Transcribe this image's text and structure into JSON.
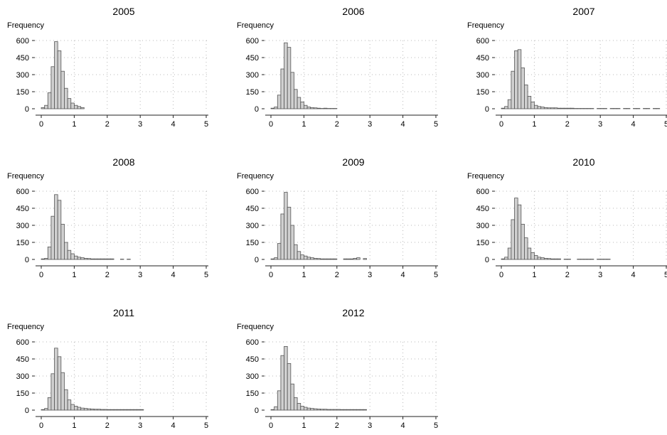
{
  "chart_data": [
    {
      "type": "bar",
      "title": "2005",
      "ylabel": "Frequency",
      "xlim": [
        0,
        5
      ],
      "ylim": [
        0,
        600
      ],
      "xticks": [
        "0",
        "1",
        "2",
        "3",
        "4",
        "5"
      ],
      "yticks": [
        "0",
        "150",
        "300",
        "450",
        "600"
      ],
      "grid": true,
      "bin_width": 0.1,
      "bin_starts": [
        0.0,
        0.1,
        0.2,
        0.3,
        0.4,
        0.5,
        0.6,
        0.7,
        0.8,
        0.9,
        1.0,
        1.1,
        1.2
      ],
      "values": [
        10,
        30,
        140,
        370,
        590,
        510,
        330,
        180,
        90,
        50,
        30,
        20,
        10
      ]
    },
    {
      "type": "bar",
      "title": "2006",
      "ylabel": "Frequency",
      "xlim": [
        0,
        5
      ],
      "ylim": [
        0,
        600
      ],
      "xticks": [
        "0",
        "1",
        "2",
        "3",
        "4",
        "5"
      ],
      "yticks": [
        "0",
        "150",
        "300",
        "450",
        "600"
      ],
      "grid": true,
      "bin_width": 0.1,
      "bin_starts": [
        0.0,
        0.1,
        0.2,
        0.3,
        0.4,
        0.5,
        0.6,
        0.7,
        0.8,
        0.9,
        1.0,
        1.1,
        1.2,
        1.3,
        1.4,
        1.5,
        1.6,
        1.7,
        1.8,
        1.9
      ],
      "values": [
        5,
        15,
        120,
        350,
        580,
        540,
        320,
        170,
        100,
        60,
        30,
        15,
        10,
        8,
        5,
        3,
        5,
        3,
        3,
        3
      ]
    },
    {
      "type": "bar",
      "title": "2007",
      "ylabel": "Frequency",
      "xlim": [
        0,
        5
      ],
      "ylim": [
        0,
        600
      ],
      "xticks": [
        "0",
        "1",
        "2",
        "3",
        "4",
        "5"
      ],
      "yticks": [
        "0",
        "150",
        "300",
        "450",
        "600"
      ],
      "grid": true,
      "bin_width": 0.1,
      "bin_starts": [
        0.0,
        0.1,
        0.2,
        0.3,
        0.4,
        0.5,
        0.6,
        0.7,
        0.8,
        0.9,
        1.0,
        1.1,
        1.2,
        1.3,
        1.4,
        1.5,
        1.6,
        1.7,
        1.8,
        1.9,
        2.0,
        2.1,
        2.2,
        2.3,
        2.4,
        2.5,
        2.6,
        2.7,
        2.9,
        3.0,
        3.1,
        3.3,
        3.4,
        3.5,
        3.7,
        3.8,
        4.0,
        4.1,
        4.3,
        4.4,
        4.6,
        4.7
      ],
      "values": [
        5,
        20,
        80,
        330,
        510,
        520,
        360,
        210,
        110,
        60,
        30,
        20,
        15,
        10,
        8,
        8,
        8,
        5,
        5,
        5,
        5,
        5,
        3,
        3,
        3,
        3,
        3,
        3,
        3,
        3,
        3,
        3,
        3,
        3,
        3,
        3,
        3,
        3,
        3,
        3,
        3,
        3
      ]
    },
    {
      "type": "bar",
      "title": "2008",
      "ylabel": "Frequency",
      "xlim": [
        0,
        5
      ],
      "ylim": [
        0,
        600
      ],
      "xticks": [
        "0",
        "1",
        "2",
        "3",
        "4",
        "5"
      ],
      "yticks": [
        "0",
        "150",
        "300",
        "450",
        "600"
      ],
      "grid": true,
      "bin_width": 0.1,
      "bin_starts": [
        0.0,
        0.1,
        0.2,
        0.3,
        0.4,
        0.5,
        0.6,
        0.7,
        0.8,
        0.9,
        1.0,
        1.1,
        1.2,
        1.3,
        1.4,
        1.5,
        1.6,
        1.7,
        1.8,
        1.9,
        2.0,
        2.1,
        2.4,
        2.6
      ],
      "values": [
        5,
        10,
        110,
        380,
        570,
        520,
        310,
        150,
        80,
        50,
        30,
        20,
        15,
        10,
        8,
        5,
        5,
        5,
        5,
        5,
        5,
        5,
        3,
        3
      ]
    },
    {
      "type": "bar",
      "title": "2009",
      "ylabel": "Frequency",
      "xlim": [
        0,
        5
      ],
      "ylim": [
        0,
        600
      ],
      "xticks": [
        "0",
        "1",
        "2",
        "3",
        "4",
        "5"
      ],
      "yticks": [
        "0",
        "150",
        "300",
        "450",
        "600"
      ],
      "grid": true,
      "bin_width": 0.1,
      "bin_starts": [
        0.0,
        0.1,
        0.2,
        0.3,
        0.4,
        0.5,
        0.6,
        0.7,
        0.8,
        0.9,
        1.0,
        1.1,
        1.2,
        1.3,
        1.4,
        1.5,
        1.6,
        1.7,
        1.8,
        1.9,
        2.2,
        2.3,
        2.4,
        2.5,
        2.6,
        2.8
      ],
      "values": [
        5,
        15,
        140,
        400,
        590,
        460,
        300,
        130,
        70,
        40,
        30,
        20,
        15,
        10,
        8,
        5,
        5,
        5,
        5,
        5,
        5,
        5,
        5,
        10,
        15,
        8
      ]
    },
    {
      "type": "bar",
      "title": "2010",
      "ylabel": "Frequency",
      "xlim": [
        0,
        5
      ],
      "ylim": [
        0,
        600
      ],
      "xticks": [
        "0",
        "1",
        "2",
        "3",
        "4",
        "5"
      ],
      "yticks": [
        "0",
        "150",
        "300",
        "450",
        "600"
      ],
      "grid": true,
      "bin_width": 0.1,
      "bin_starts": [
        0.0,
        0.1,
        0.2,
        0.3,
        0.4,
        0.5,
        0.6,
        0.7,
        0.8,
        0.9,
        1.0,
        1.1,
        1.2,
        1.3,
        1.4,
        1.5,
        1.6,
        1.7,
        1.9,
        2.0,
        2.3,
        2.4,
        2.5,
        2.6,
        2.7,
        2.9,
        3.0,
        3.1,
        3.2
      ],
      "values": [
        5,
        20,
        100,
        350,
        540,
        480,
        310,
        190,
        100,
        60,
        35,
        20,
        15,
        10,
        8,
        5,
        5,
        5,
        3,
        3,
        3,
        3,
        3,
        3,
        3,
        3,
        3,
        3,
        3
      ]
    },
    {
      "type": "bar",
      "title": "2011",
      "ylabel": "Frequency",
      "xlim": [
        0,
        5
      ],
      "ylim": [
        0,
        600
      ],
      "xticks": [
        "0",
        "1",
        "2",
        "3",
        "4",
        "5"
      ],
      "yticks": [
        "0",
        "150",
        "300",
        "450",
        "600"
      ],
      "grid": true,
      "bin_width": 0.1,
      "bin_starts": [
        0.0,
        0.1,
        0.2,
        0.3,
        0.4,
        0.5,
        0.6,
        0.7,
        0.8,
        0.9,
        1.0,
        1.1,
        1.2,
        1.3,
        1.4,
        1.5,
        1.6,
        1.7,
        1.8,
        1.9,
        2.0,
        2.1,
        2.2,
        2.3,
        2.4,
        2.5,
        2.6,
        2.7,
        2.8,
        2.9,
        3.0
      ],
      "values": [
        5,
        15,
        110,
        320,
        545,
        470,
        330,
        180,
        90,
        50,
        35,
        25,
        18,
        15,
        12,
        10,
        8,
        8,
        6,
        6,
        5,
        5,
        5,
        5,
        5,
        5,
        5,
        5,
        5,
        5,
        5
      ]
    },
    {
      "type": "bar",
      "title": "2012",
      "ylabel": "Frequency",
      "xlim": [
        0,
        5
      ],
      "ylim": [
        0,
        600
      ],
      "xticks": [
        "0",
        "1",
        "2",
        "3",
        "4",
        "5"
      ],
      "yticks": [
        "0",
        "150",
        "300",
        "450",
        "600"
      ],
      "grid": true,
      "bin_width": 0.1,
      "bin_starts": [
        0.0,
        0.1,
        0.2,
        0.3,
        0.4,
        0.5,
        0.6,
        0.7,
        0.8,
        0.9,
        1.0,
        1.1,
        1.2,
        1.3,
        1.4,
        1.5,
        1.6,
        1.7,
        1.8,
        1.9,
        2.0,
        2.1,
        2.2,
        2.3,
        2.4,
        2.5,
        2.6,
        2.7,
        2.8
      ],
      "values": [
        5,
        30,
        170,
        480,
        560,
        410,
        230,
        110,
        60,
        35,
        25,
        18,
        15,
        12,
        10,
        8,
        8,
        6,
        6,
        6,
        6,
        5,
        5,
        5,
        5,
        5,
        5,
        5,
        5
      ]
    }
  ]
}
